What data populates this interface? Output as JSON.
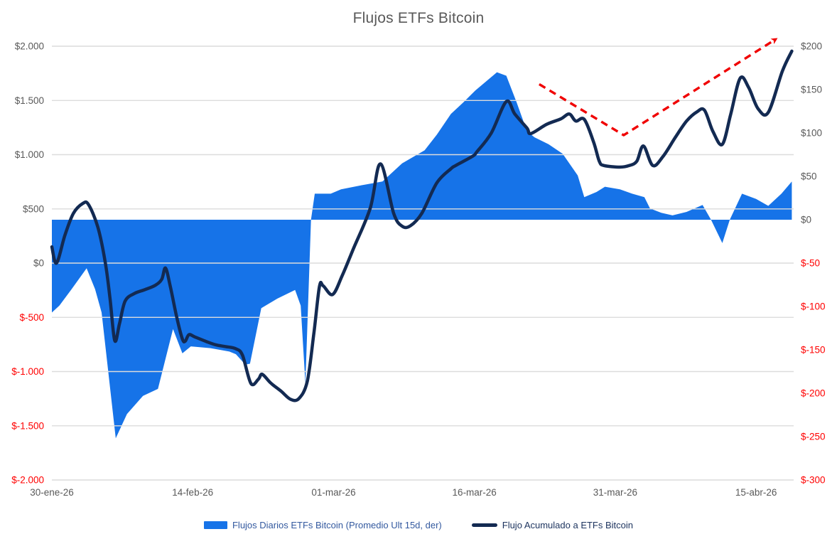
{
  "chart_data": {
    "type": "combo",
    "title": "Flujos ETFs Bitcoin",
    "background": "#ffffff",
    "grid": {
      "show": true,
      "color": "#dcdcdc"
    },
    "x_axis": {
      "domain": [
        0,
        79
      ],
      "unit": "days-since-first-label",
      "ticks": [
        {
          "day": 0,
          "label": "30-ene-26"
        },
        {
          "day": 15,
          "label": "14-feb-26"
        },
        {
          "day": 30,
          "label": "01-mar-26"
        },
        {
          "day": 45,
          "label": "16-mar-26"
        },
        {
          "day": 60,
          "label": "31-mar-26"
        },
        {
          "day": 75,
          "label": "15-abr-26"
        }
      ]
    },
    "y_left": {
      "min": -2000,
      "max": 2000,
      "step": 500,
      "positive_color": "#595959",
      "negative_color": "#ff0000",
      "ticks": [
        {
          "value": 2000,
          "label": "$2.000"
        },
        {
          "value": 1500,
          "label": "$1.500"
        },
        {
          "value": 1000,
          "label": "$1.000"
        },
        {
          "value": 500,
          "label": "$500"
        },
        {
          "value": 0,
          "label": "$0"
        },
        {
          "value": -500,
          "label": "$-500"
        },
        {
          "value": -1000,
          "label": "$-1.000"
        },
        {
          "value": -1500,
          "label": "$-1.500"
        },
        {
          "value": -2000,
          "label": "$-2.000"
        }
      ]
    },
    "y_right": {
      "min": -300,
      "max": 200,
      "step": 50,
      "positive_color": "#595959",
      "negative_color": "#ff0000",
      "ticks": [
        {
          "value": 200,
          "label": "$200"
        },
        {
          "value": 150,
          "label": "$150"
        },
        {
          "value": 100,
          "label": "$100"
        },
        {
          "value": 50,
          "label": "$50"
        },
        {
          "value": 0,
          "label": "$0"
        },
        {
          "value": -50,
          "label": "$-50"
        },
        {
          "value": -100,
          "label": "$-100"
        },
        {
          "value": -150,
          "label": "$-150"
        },
        {
          "value": -200,
          "label": "$-200"
        },
        {
          "value": -250,
          "label": "$-250"
        },
        {
          "value": -300,
          "label": "$-300"
        }
      ]
    },
    "series": [
      {
        "name": "Flujos Diarios ETFs Bitcoin (Promedio Ult 15d, der)",
        "type": "area",
        "axis": "right",
        "color": "#1673e8",
        "baseline": 0,
        "points": [
          [
            0,
            -107
          ],
          [
            0.8,
            -99
          ],
          [
            2.1,
            -80
          ],
          [
            3.7,
            -56
          ],
          [
            4.6,
            -80
          ],
          [
            5.3,
            -107
          ],
          [
            6.8,
            -252
          ],
          [
            8,
            -224
          ],
          [
            9.7,
            -203
          ],
          [
            11.3,
            -195
          ],
          [
            12.9,
            -126
          ],
          [
            13.9,
            -154
          ],
          [
            14.8,
            -146
          ],
          [
            16.9,
            -148
          ],
          [
            18.9,
            -152
          ],
          [
            19.6,
            -155
          ],
          [
            20.6,
            -167
          ],
          [
            21.1,
            -166
          ],
          [
            22.3,
            -102
          ],
          [
            24,
            -91
          ],
          [
            25.9,
            -81
          ],
          [
            26.5,
            -99
          ],
          [
            27,
            -189
          ],
          [
            27.6,
            0
          ],
          [
            28,
            30
          ],
          [
            29.7,
            30
          ],
          [
            30.8,
            35
          ],
          [
            33.1,
            40
          ],
          [
            35.2,
            44
          ],
          [
            37.3,
            65
          ],
          [
            39.7,
            80
          ],
          [
            41,
            98
          ],
          [
            42.5,
            122
          ],
          [
            43.8,
            135
          ],
          [
            45.1,
            149
          ],
          [
            47.4,
            170
          ],
          [
            48.4,
            166
          ],
          [
            49.5,
            135
          ],
          [
            50.6,
            102
          ],
          [
            51.4,
            95
          ],
          [
            52.9,
            87
          ],
          [
            54.4,
            76
          ],
          [
            56,
            51
          ],
          [
            56.7,
            26
          ],
          [
            58,
            32
          ],
          [
            58.9,
            38
          ],
          [
            60.5,
            35
          ],
          [
            61.8,
            30
          ],
          [
            63.1,
            26
          ],
          [
            63.7,
            13
          ],
          [
            64.9,
            8
          ],
          [
            66.1,
            5
          ],
          [
            67.6,
            9
          ],
          [
            69.3,
            17
          ],
          [
            70.2,
            0
          ],
          [
            71.4,
            -27
          ],
          [
            72.2,
            0
          ],
          [
            73.5,
            30
          ],
          [
            75,
            24
          ],
          [
            76.3,
            16
          ],
          [
            77.7,
            30
          ],
          [
            78.8,
            44
          ]
        ]
      },
      {
        "name": "Flujo Acumulado a ETFs Bitcoin",
        "type": "line",
        "axis": "left",
        "color": "#132a52",
        "width": 4.5,
        "points": [
          [
            0,
            150
          ],
          [
            0.5,
            0
          ],
          [
            1.4,
            260
          ],
          [
            2.3,
            460
          ],
          [
            3.3,
            550
          ],
          [
            3.9,
            540
          ],
          [
            4.9,
            330
          ],
          [
            5.7,
            0
          ],
          [
            6.2,
            -330
          ],
          [
            6.7,
            -715
          ],
          [
            7.2,
            -560
          ],
          [
            7.8,
            -350
          ],
          [
            8.8,
            -280
          ],
          [
            9.9,
            -245
          ],
          [
            11,
            -205
          ],
          [
            11.7,
            -150
          ],
          [
            12.1,
            -45
          ],
          [
            12.6,
            -210
          ],
          [
            13.3,
            -500
          ],
          [
            13.9,
            -700
          ],
          [
            14.2,
            -720
          ],
          [
            14.6,
            -660
          ],
          [
            15.2,
            -680
          ],
          [
            16.5,
            -725
          ],
          [
            17.5,
            -755
          ],
          [
            18.5,
            -770
          ],
          [
            19.6,
            -790
          ],
          [
            20.3,
            -850
          ],
          [
            21.2,
            -1110
          ],
          [
            22,
            -1070
          ],
          [
            22.4,
            -1025
          ],
          [
            23.3,
            -1105
          ],
          [
            24.4,
            -1180
          ],
          [
            25.4,
            -1255
          ],
          [
            26.3,
            -1250
          ],
          [
            27.2,
            -1090
          ],
          [
            27.9,
            -650
          ],
          [
            28.5,
            -215
          ],
          [
            28.9,
            -210
          ],
          [
            29.9,
            -290
          ],
          [
            30.9,
            -120
          ],
          [
            32.1,
            130
          ],
          [
            33.9,
            505
          ],
          [
            35,
            915
          ],
          [
            36.4,
            460
          ],
          [
            37.3,
            340
          ],
          [
            38.2,
            345
          ],
          [
            39.4,
            460
          ],
          [
            41,
            740
          ],
          [
            42.5,
            870
          ],
          [
            43,
            900
          ],
          [
            44.8,
            985
          ],
          [
            45.3,
            1030
          ],
          [
            46.8,
            1200
          ],
          [
            48.4,
            1490
          ],
          [
            49.3,
            1375
          ],
          [
            50.6,
            1245
          ],
          [
            51,
            1195
          ],
          [
            52.7,
            1280
          ],
          [
            54.2,
            1330
          ],
          [
            55.1,
            1375
          ],
          [
            55.8,
            1310
          ],
          [
            56.7,
            1325
          ],
          [
            57.7,
            1115
          ],
          [
            58.3,
            940
          ],
          [
            58.8,
            900
          ],
          [
            60.5,
            885
          ],
          [
            61.5,
            900
          ],
          [
            62.3,
            940
          ],
          [
            63,
            1080
          ],
          [
            64,
            900
          ],
          [
            65.1,
            985
          ],
          [
            66.4,
            1160
          ],
          [
            67.6,
            1310
          ],
          [
            68.7,
            1395
          ],
          [
            69.5,
            1410
          ],
          [
            70.4,
            1215
          ],
          [
            71.4,
            1095
          ],
          [
            72.3,
            1375
          ],
          [
            73.3,
            1705
          ],
          [
            74.2,
            1620
          ],
          [
            75.2,
            1425
          ],
          [
            76.3,
            1390
          ],
          [
            77.8,
            1770
          ],
          [
            78.8,
            1955
          ]
        ]
      }
    ],
    "annotation": {
      "name": "trend-arrow",
      "type": "dashed-arrow",
      "axis": "left",
      "color": "#f00000",
      "points": [
        [
          51.9,
          1650
        ],
        [
          60.9,
          1180
        ],
        [
          77.1,
          2065
        ]
      ]
    },
    "legend": {
      "position": "bottom",
      "items": [
        {
          "label": "Flujos Diarios ETFs Bitcoin (Promedio Ult 15d, der)",
          "swatch": "rect",
          "swatch_color": "#1673e8",
          "text_color": "#33599f"
        },
        {
          "label": "Flujo Acumulado a ETFs Bitcoin",
          "swatch": "line",
          "swatch_color": "#132a52",
          "text_color": "#1c335e"
        }
      ]
    }
  }
}
